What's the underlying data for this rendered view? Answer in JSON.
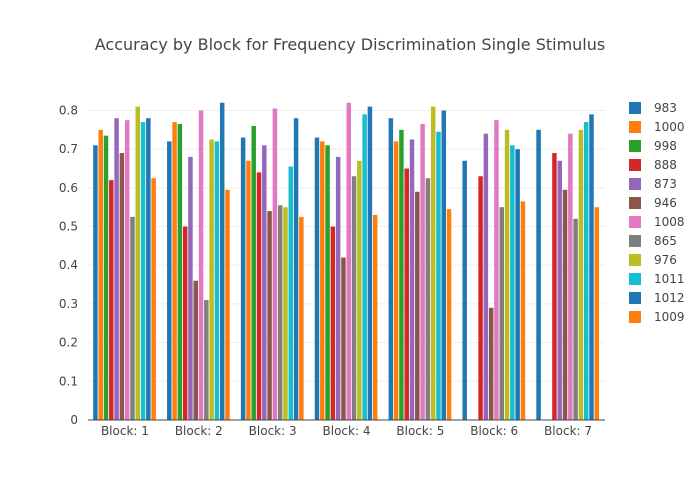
{
  "chart_data": {
    "type": "bar",
    "title": "Accuracy by Block for Frequency Discrimination Single Stimulus",
    "xlabel": "",
    "ylabel": "",
    "categories": [
      "Block: 1",
      "Block: 2",
      "Block: 3",
      "Block: 4",
      "Block: 5",
      "Block: 6",
      "Block: 7"
    ],
    "ylim": [
      0,
      0.84
    ],
    "yticks": [
      0,
      0.1,
      0.2,
      0.3,
      0.4,
      0.5,
      0.6,
      0.7,
      0.8
    ],
    "ytick_labels": [
      "0",
      "0.1",
      "0.2",
      "0.3",
      "0.4",
      "0.5",
      "0.6",
      "0.7",
      "0.8"
    ],
    "grid": true,
    "legend_position": "right",
    "series": [
      {
        "name": "983",
        "color": "#1f77b4",
        "values": [
          0.71,
          0.72,
          0.73,
          0.73,
          0.78,
          0.67,
          0.75
        ]
      },
      {
        "name": "1000",
        "color": "#ff7f0e",
        "values": [
          0.75,
          0.77,
          0.67,
          0.72,
          0.72,
          null,
          null
        ]
      },
      {
        "name": "998",
        "color": "#2ca02c",
        "values": [
          0.735,
          0.765,
          0.76,
          0.71,
          0.75,
          null,
          null
        ]
      },
      {
        "name": "888",
        "color": "#d62728",
        "values": [
          0.62,
          0.5,
          0.64,
          0.5,
          0.65,
          0.63,
          0.69
        ]
      },
      {
        "name": "873",
        "color": "#9467bd",
        "values": [
          0.78,
          0.68,
          0.71,
          0.68,
          0.725,
          0.74,
          0.67
        ]
      },
      {
        "name": "946",
        "color": "#8c564b",
        "values": [
          0.69,
          0.36,
          0.54,
          0.42,
          0.59,
          0.29,
          0.595
        ]
      },
      {
        "name": "1008",
        "color": "#e377c2",
        "values": [
          0.775,
          0.8,
          0.805,
          0.82,
          0.765,
          0.775,
          0.74
        ]
      },
      {
        "name": "865",
        "color": "#7f7f7f",
        "values": [
          0.525,
          0.31,
          0.555,
          0.63,
          0.625,
          0.55,
          0.52
        ]
      },
      {
        "name": "976",
        "color": "#bcbd22",
        "values": [
          0.81,
          0.725,
          0.55,
          0.67,
          0.81,
          0.75,
          0.75
        ]
      },
      {
        "name": "1011",
        "color": "#17becf",
        "values": [
          0.77,
          0.72,
          0.655,
          0.79,
          0.745,
          0.71,
          0.77
        ]
      },
      {
        "name": "1012",
        "color": "#1f77b4",
        "values": [
          0.78,
          0.82,
          0.78,
          0.81,
          0.8,
          0.7,
          0.79
        ]
      },
      {
        "name": "1009",
        "color": "#ff7f0e",
        "values": [
          0.625,
          0.595,
          0.525,
          0.53,
          0.545,
          0.565,
          0.55
        ]
      }
    ]
  }
}
